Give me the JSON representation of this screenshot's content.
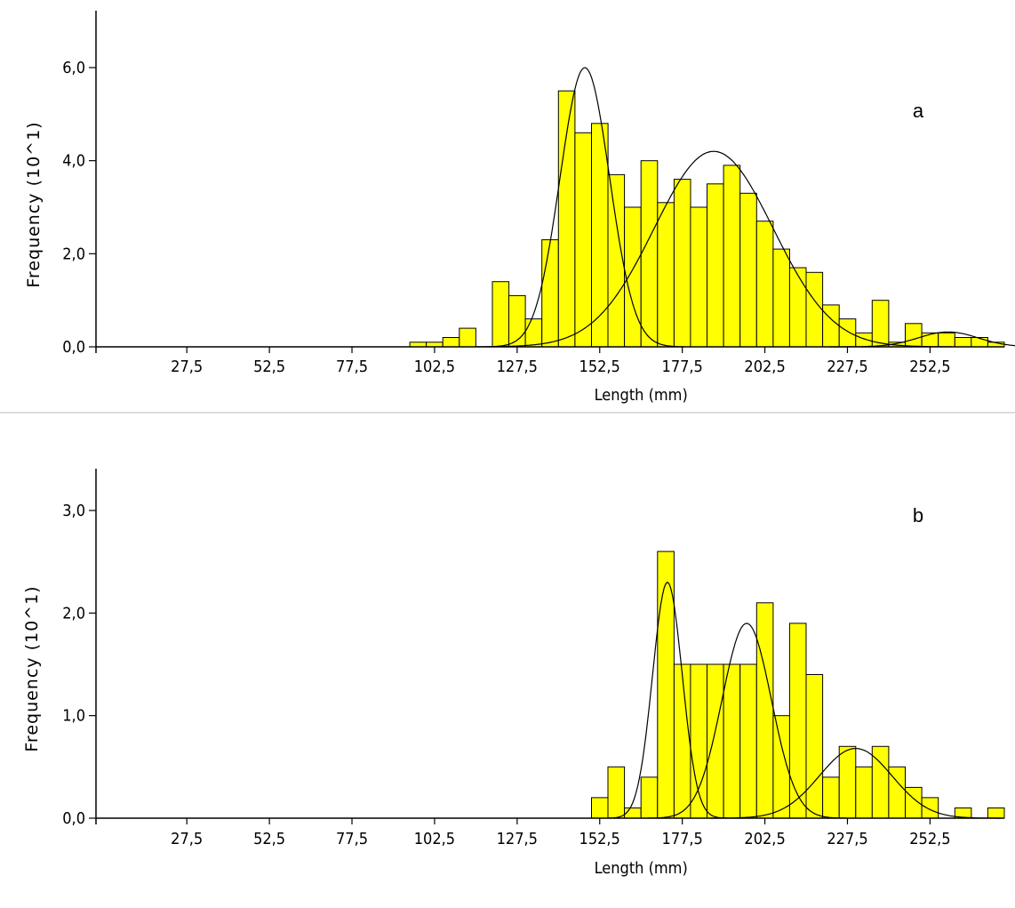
{
  "chart_data": [
    {
      "type": "bar",
      "panel_label": "a",
      "xlabel": "Length (mm)",
      "ylabel": "Frequency (10^1)",
      "xlim": [
        0,
        275
      ],
      "ylim": [
        0,
        6.0
      ],
      "x_ticks": [
        27.5,
        52.5,
        77.5,
        102.5,
        127.5,
        152.5,
        177.5,
        202.5,
        227.5,
        252.5
      ],
      "x_tick_labels": [
        "27,5",
        "52,5",
        "77,5",
        "102,5",
        "127,5",
        "152,5",
        "177,5",
        "202,5",
        "227,5",
        "252,5"
      ],
      "y_ticks": [
        0,
        2,
        4,
        6
      ],
      "y_tick_labels": [
        "0,0",
        "2,0",
        "4,0",
        "6,0"
      ],
      "bin_width": 5,
      "bin_starts": [
        95,
        100,
        105,
        110,
        115,
        120,
        125,
        130,
        135,
        140,
        145,
        150,
        155,
        160,
        165,
        170,
        175,
        180,
        185,
        190,
        195,
        200,
        205,
        210,
        215,
        220,
        225,
        230,
        235,
        240,
        245,
        250,
        255,
        260,
        265,
        270
      ],
      "values": [
        0.1,
        0.1,
        0.2,
        0.4,
        0.0,
        1.4,
        1.1,
        0.6,
        2.3,
        5.5,
        4.6,
        4.8,
        3.7,
        3.0,
        4.0,
        3.1,
        3.6,
        3.0,
        3.5,
        3.9,
        3.3,
        2.7,
        2.1,
        1.7,
        1.6,
        0.9,
        0.6,
        0.3,
        1.0,
        0.1,
        0.5,
        0.3,
        0.3,
        0.2,
        0.2,
        0.1
      ],
      "curves": [
        {
          "mean": 148,
          "sd": 7.5,
          "peak": 6.0
        },
        {
          "mean": 187,
          "sd": 18,
          "peak": 4.2
        },
        {
          "mean": 258,
          "sd": 9,
          "peak": 0.32
        }
      ]
    },
    {
      "type": "bar",
      "panel_label": "b",
      "xlabel": "Length (mm)",
      "ylabel": "Frequency (10^1)",
      "xlim": [
        0,
        275
      ],
      "ylim": [
        0,
        3.0
      ],
      "x_ticks": [
        27.5,
        52.5,
        77.5,
        102.5,
        127.5,
        152.5,
        177.5,
        202.5,
        227.5,
        252.5
      ],
      "x_tick_labels": [
        "27,5",
        "52,5",
        "77,5",
        "102,5",
        "127,5",
        "152,5",
        "177,5",
        "202,5",
        "227,5",
        "252,5"
      ],
      "y_ticks": [
        0,
        1,
        2,
        3
      ],
      "y_tick_labels": [
        "0,0",
        "1,0",
        "2,0",
        "3,0"
      ],
      "bin_width": 5,
      "bin_starts": [
        150,
        155,
        160,
        165,
        170,
        175,
        180,
        185,
        190,
        195,
        200,
        205,
        210,
        215,
        220,
        225,
        230,
        235,
        240,
        245,
        250,
        255,
        260,
        265,
        270
      ],
      "values": [
        0.2,
        0.5,
        0.1,
        0.4,
        2.6,
        1.5,
        1.5,
        1.5,
        1.5,
        1.5,
        2.1,
        1.0,
        1.9,
        1.4,
        0.4,
        0.7,
        0.5,
        0.7,
        0.5,
        0.3,
        0.2,
        0.0,
        0.1,
        0.0,
        0.1
      ],
      "curves": [
        {
          "mean": 173,
          "sd": 4.5,
          "peak": 2.3
        },
        {
          "mean": 197,
          "sd": 7.5,
          "peak": 1.9
        },
        {
          "mean": 230,
          "sd": 11,
          "peak": 0.68
        }
      ]
    }
  ]
}
